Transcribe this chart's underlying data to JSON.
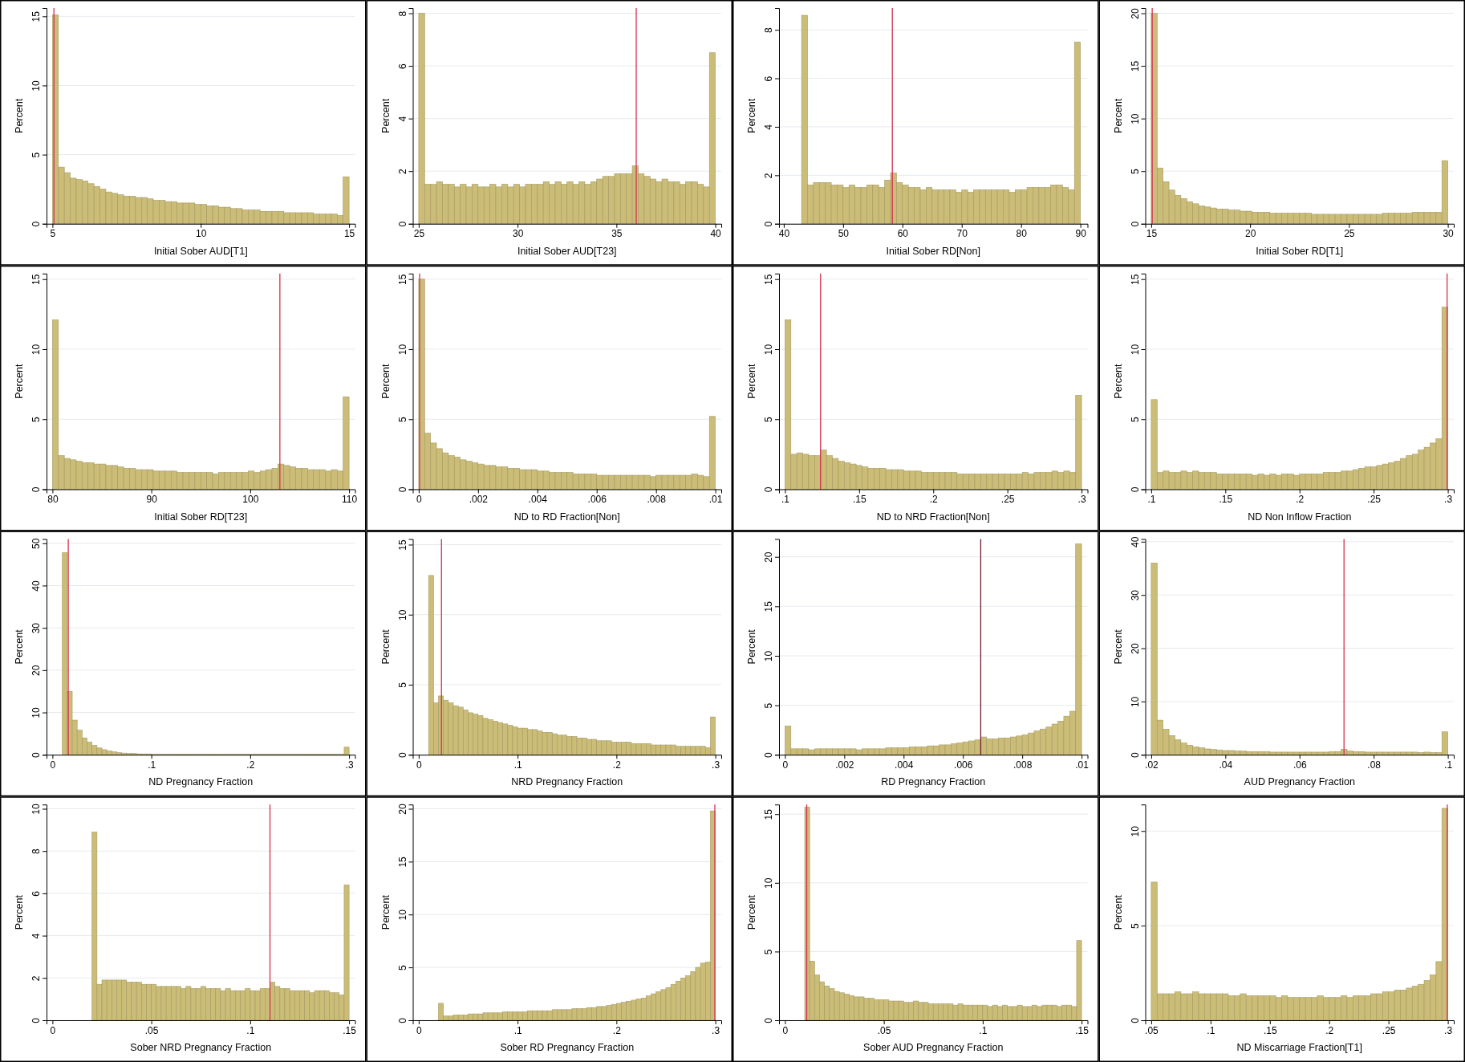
{
  "chart_data": [
    {
      "type": "histogram",
      "xlabel": "Initial Sober AUD[T1]",
      "ylabel": "Percent",
      "color": "#cbbd78",
      "grid": "y",
      "xlim": [
        4.8,
        15.2
      ],
      "ylim": [
        0,
        15.6
      ],
      "xticks": [
        5,
        10,
        15
      ],
      "yticks": [
        0,
        5,
        10,
        15
      ],
      "ref_lines": [
        {
          "axis": "x",
          "value": 5.05,
          "color": "#d6304f"
        }
      ],
      "bins": [
        5,
        5.2,
        5.4,
        5.6,
        5.8,
        6,
        6.2,
        6.4,
        6.6,
        6.8,
        7,
        7.2,
        7.4,
        7.6,
        7.8,
        8,
        8.2,
        8.4,
        8.6,
        8.8,
        9,
        9.2,
        9.4,
        9.6,
        9.8,
        10,
        10.2,
        10.4,
        10.6,
        10.8,
        11,
        11.2,
        11.4,
        11.6,
        11.8,
        12,
        12.2,
        12.4,
        12.6,
        12.8,
        13,
        13.2,
        13.4,
        13.6,
        13.8,
        14,
        14.2,
        14.4,
        14.6,
        14.8,
        15
      ],
      "values": [
        15.1,
        4.1,
        3.7,
        3.3,
        3.2,
        3.1,
        2.9,
        2.7,
        2.5,
        2.3,
        2.2,
        2.1,
        2.0,
        2.0,
        1.9,
        1.9,
        1.8,
        1.7,
        1.7,
        1.6,
        1.6,
        1.5,
        1.5,
        1.5,
        1.4,
        1.4,
        1.3,
        1.3,
        1.2,
        1.2,
        1.1,
        1.1,
        1.0,
        1.0,
        1.0,
        0.9,
        0.9,
        0.9,
        0.9,
        0.8,
        0.8,
        0.8,
        0.8,
        0.8,
        0.7,
        0.7,
        0.7,
        0.7,
        0.6,
        3.4
      ]
    },
    {
      "type": "histogram",
      "xlabel": "Initial Sober AUD[T23]",
      "ylabel": "Percent",
      "color": "#cbbd78",
      "grid": "y",
      "xlim": [
        24.7,
        40.3
      ],
      "ylim": [
        0,
        8.2
      ],
      "xticks": [
        25,
        30,
        35,
        40
      ],
      "yticks": [
        0,
        2,
        4,
        6,
        8
      ],
      "ref_lines": [
        {
          "axis": "x",
          "value": 36,
          "color": "#d6304f"
        }
      ],
      "bins": [
        25,
        25.3,
        25.6,
        25.9,
        26.2,
        26.5,
        26.8,
        27.1,
        27.4,
        27.7,
        28,
        28.3,
        28.6,
        28.9,
        29.2,
        29.5,
        29.8,
        30.1,
        30.4,
        30.7,
        31,
        31.3,
        31.6,
        31.9,
        32.2,
        32.5,
        32.8,
        33.1,
        33.4,
        33.7,
        34,
        34.3,
        34.6,
        34.9,
        35.2,
        35.5,
        35.8,
        36.1,
        36.4,
        36.7,
        37,
        37.3,
        37.6,
        37.9,
        38.2,
        38.5,
        38.8,
        39.1,
        39.4,
        39.7,
        40
      ],
      "values": [
        8.0,
        1.5,
        1.5,
        1.6,
        1.5,
        1.5,
        1.4,
        1.5,
        1.4,
        1.5,
        1.4,
        1.4,
        1.5,
        1.4,
        1.5,
        1.4,
        1.5,
        1.4,
        1.5,
        1.5,
        1.5,
        1.6,
        1.5,
        1.6,
        1.5,
        1.6,
        1.5,
        1.6,
        1.5,
        1.6,
        1.7,
        1.8,
        1.8,
        1.9,
        1.9,
        1.9,
        2.2,
        1.9,
        1.8,
        1.7,
        1.6,
        1.7,
        1.6,
        1.6,
        1.5,
        1.6,
        1.6,
        1.5,
        1.4,
        6.5
      ]
    },
    {
      "type": "histogram",
      "xlabel": "Initial Sober RD[Non]",
      "ylabel": "Percent",
      "color": "#cbbd78",
      "grid": "y",
      "xlim": [
        39.2,
        91.2
      ],
      "ylim": [
        0,
        8.9
      ],
      "xticks": [
        40,
        50,
        60,
        70,
        80,
        90
      ],
      "yticks": [
        0,
        2,
        4,
        6,
        8
      ],
      "ref_lines": [
        {
          "axis": "x",
          "value": 58.3,
          "color": "#d6304f"
        }
      ],
      "bins": [
        43,
        44,
        45,
        46,
        47,
        48,
        49,
        50,
        51,
        52,
        53,
        54,
        55,
        56,
        57,
        58,
        59,
        60,
        61,
        62,
        63,
        64,
        65,
        66,
        67,
        68,
        69,
        70,
        71,
        72,
        73,
        74,
        75,
        76,
        77,
        78,
        79,
        80,
        81,
        82,
        83,
        84,
        85,
        86,
        87,
        88,
        89,
        90
      ],
      "values": [
        8.6,
        1.6,
        1.7,
        1.7,
        1.7,
        1.6,
        1.6,
        1.5,
        1.6,
        1.5,
        1.5,
        1.6,
        1.6,
        1.5,
        1.8,
        2.1,
        1.7,
        1.6,
        1.5,
        1.5,
        1.4,
        1.5,
        1.4,
        1.4,
        1.4,
        1.4,
        1.3,
        1.4,
        1.3,
        1.4,
        1.4,
        1.4,
        1.4,
        1.4,
        1.4,
        1.3,
        1.4,
        1.4,
        1.5,
        1.5,
        1.5,
        1.5,
        1.6,
        1.6,
        1.5,
        1.4,
        7.5
      ]
    },
    {
      "type": "histogram",
      "xlabel": "Initial Sober RD[T1]",
      "ylabel": "Percent",
      "color": "#cbbd78",
      "grid": "y",
      "xlim": [
        14.7,
        30.3
      ],
      "ylim": [
        0,
        20.5
      ],
      "xticks": [
        15,
        20,
        25,
        30
      ],
      "yticks": [
        0,
        5,
        10,
        15,
        20
      ],
      "ref_lines": [
        {
          "axis": "x",
          "value": 15.05,
          "color": "#d6304f"
        }
      ],
      "bins": [
        15,
        15.3,
        15.6,
        15.9,
        16.2,
        16.5,
        16.8,
        17.1,
        17.4,
        17.7,
        18,
        18.3,
        18.6,
        18.9,
        19.2,
        19.5,
        19.8,
        20.1,
        20.4,
        20.7,
        21,
        21.3,
        21.6,
        21.9,
        22.2,
        22.5,
        22.8,
        23.1,
        23.4,
        23.7,
        24,
        24.3,
        24.6,
        24.9,
        25.2,
        25.5,
        25.8,
        26.1,
        26.4,
        26.7,
        27,
        27.3,
        27.6,
        27.9,
        28.2,
        28.5,
        28.8,
        29.1,
        29.4,
        29.7,
        30
      ],
      "values": [
        20.0,
        5.3,
        4.0,
        3.2,
        2.7,
        2.4,
        2.1,
        1.9,
        1.7,
        1.6,
        1.5,
        1.4,
        1.4,
        1.3,
        1.3,
        1.2,
        1.2,
        1.1,
        1.1,
        1.1,
        1.0,
        1.0,
        1.0,
        1.0,
        1.0,
        1.0,
        1.0,
        0.9,
        0.9,
        0.9,
        0.9,
        0.9,
        0.9,
        0.9,
        0.9,
        0.9,
        0.9,
        0.9,
        0.9,
        1.0,
        1.0,
        1.0,
        1.0,
        1.0,
        1.1,
        1.1,
        1.1,
        1.1,
        1.1,
        6.0
      ]
    },
    {
      "type": "histogram",
      "xlabel": "Initial Sober RD[T23]",
      "ylabel": "Percent",
      "color": "#cbbd78",
      "grid": "y",
      "xlim": [
        79.4,
        110.6
      ],
      "ylim": [
        0,
        15.4
      ],
      "xticks": [
        80,
        90,
        100,
        110
      ],
      "yticks": [
        0,
        5,
        10,
        15
      ],
      "ref_lines": [
        {
          "axis": "x",
          "value": 103,
          "color": "#d6304f"
        }
      ],
      "bins": [
        80,
        80.6,
        81.2,
        81.8,
        82.4,
        83,
        83.6,
        84.2,
        84.8,
        85.4,
        86,
        86.6,
        87.2,
        87.8,
        88.4,
        89,
        89.6,
        90.2,
        90.8,
        91.4,
        92,
        92.6,
        93.2,
        93.8,
        94.4,
        95,
        95.6,
        96.2,
        96.8,
        97.4,
        98,
        98.6,
        99.2,
        99.8,
        100.4,
        101,
        101.6,
        102.2,
        102.8,
        103.4,
        104,
        104.6,
        105.2,
        105.8,
        106.4,
        107,
        107.6,
        108.2,
        108.8,
        109.4,
        110
      ],
      "values": [
        12.1,
        2.4,
        2.2,
        2.1,
        2.0,
        1.9,
        1.9,
        1.8,
        1.8,
        1.7,
        1.7,
        1.6,
        1.5,
        1.5,
        1.4,
        1.4,
        1.4,
        1.3,
        1.3,
        1.3,
        1.3,
        1.2,
        1.2,
        1.2,
        1.2,
        1.2,
        1.2,
        1.1,
        1.2,
        1.2,
        1.2,
        1.2,
        1.2,
        1.3,
        1.2,
        1.3,
        1.4,
        1.5,
        1.8,
        1.7,
        1.6,
        1.5,
        1.5,
        1.4,
        1.4,
        1.4,
        1.3,
        1.4,
        1.3,
        6.6
      ]
    },
    {
      "type": "histogram",
      "xlabel": "ND to RD Fraction[Non]",
      "ylabel": "Percent",
      "color": "#cbbd78",
      "grid": "y",
      "xlim": [
        -0.0002,
        0.0102
      ],
      "ylim": [
        0,
        15.4
      ],
      "xticks": [
        0,
        {
          "value": 0.002,
          "label": ".002"
        },
        {
          "value": 0.004,
          "label": ".004"
        },
        {
          "value": 0.006,
          "label": ".006"
        },
        {
          "value": 0.008,
          "label": ".008"
        },
        {
          "value": 0.01,
          "label": ".01"
        }
      ],
      "yticks": [
        0,
        5,
        10,
        15
      ],
      "ref_lines": [
        {
          "axis": "x",
          "value": 3e-05,
          "color": "#d6304f"
        }
      ],
      "bins": [
        0,
        0.0002,
        0.0004,
        0.0006,
        0.0008,
        0.001,
        0.0012,
        0.0014,
        0.0016,
        0.0018,
        0.002,
        0.0022,
        0.0024,
        0.0026,
        0.0028,
        0.003,
        0.0032,
        0.0034,
        0.0036,
        0.0038,
        0.004,
        0.0042,
        0.0044,
        0.0046,
        0.0048,
        0.005,
        0.0052,
        0.0054,
        0.0056,
        0.0058,
        0.006,
        0.0062,
        0.0064,
        0.0066,
        0.0068,
        0.007,
        0.0072,
        0.0074,
        0.0076,
        0.0078,
        0.008,
        0.0082,
        0.0084,
        0.0086,
        0.0088,
        0.009,
        0.0092,
        0.0094,
        0.0096,
        0.0098,
        0.01
      ],
      "values": [
        15.0,
        4.0,
        3.3,
        2.9,
        2.6,
        2.4,
        2.3,
        2.1,
        2.0,
        1.9,
        1.8,
        1.7,
        1.7,
        1.6,
        1.6,
        1.5,
        1.5,
        1.4,
        1.4,
        1.4,
        1.3,
        1.3,
        1.2,
        1.2,
        1.2,
        1.2,
        1.1,
        1.1,
        1.1,
        1.1,
        1.0,
        1.0,
        1.0,
        1.0,
        1.0,
        1.0,
        1.0,
        1.0,
        1.0,
        0.9,
        1.0,
        1.0,
        1.0,
        1.0,
        1.0,
        1.0,
        1.1,
        1.0,
        0.9,
        5.2
      ]
    },
    {
      "type": "histogram",
      "xlabel": "ND to NRD Fraction[Non]",
      "ylabel": "Percent",
      "color": "#cbbd78",
      "grid": "y",
      "xlim": [
        0.096,
        0.304
      ],
      "ylim": [
        0,
        15.4
      ],
      "xticks": [
        {
          "value": 0.1,
          "label": ".1"
        },
        {
          "value": 0.15,
          "label": ".15"
        },
        {
          "value": 0.2,
          "label": ".2"
        },
        {
          "value": 0.25,
          "label": ".25"
        },
        {
          "value": 0.3,
          "label": ".3"
        }
      ],
      "yticks": [
        0,
        5,
        10,
        15
      ],
      "ref_lines": [
        {
          "axis": "x",
          "value": 0.124,
          "color": "#d6304f"
        }
      ],
      "bins": [
        0.1,
        0.104,
        0.108,
        0.112,
        0.116,
        0.12,
        0.124,
        0.128,
        0.132,
        0.136,
        0.14,
        0.144,
        0.148,
        0.152,
        0.156,
        0.16,
        0.164,
        0.168,
        0.172,
        0.176,
        0.18,
        0.184,
        0.188,
        0.192,
        0.196,
        0.2,
        0.204,
        0.208,
        0.212,
        0.216,
        0.22,
        0.224,
        0.228,
        0.232,
        0.236,
        0.24,
        0.244,
        0.248,
        0.252,
        0.256,
        0.26,
        0.264,
        0.268,
        0.272,
        0.276,
        0.28,
        0.284,
        0.288,
        0.292,
        0.296,
        0.3
      ],
      "values": [
        12.1,
        2.5,
        2.6,
        2.5,
        2.4,
        2.4,
        2.8,
        2.4,
        2.2,
        2.0,
        1.9,
        1.8,
        1.7,
        1.6,
        1.5,
        1.5,
        1.5,
        1.4,
        1.4,
        1.4,
        1.3,
        1.3,
        1.3,
        1.2,
        1.2,
        1.2,
        1.2,
        1.2,
        1.2,
        1.1,
        1.1,
        1.1,
        1.1,
        1.1,
        1.1,
        1.1,
        1.1,
        1.1,
        1.1,
        1.1,
        1.2,
        1.1,
        1.2,
        1.2,
        1.2,
        1.3,
        1.2,
        1.3,
        1.2,
        6.7
      ]
    },
    {
      "type": "histogram",
      "xlabel": "ND Non Inflow Fraction",
      "ylabel": "Percent",
      "color": "#cbbd78",
      "grid": "y",
      "xlim": [
        0.096,
        0.304
      ],
      "ylim": [
        0,
        15.4
      ],
      "xticks": [
        {
          "value": 0.1,
          "label": ".1"
        },
        {
          "value": 0.15,
          "label": ".15"
        },
        {
          "value": 0.2,
          "label": ".2"
        },
        {
          "value": 0.25,
          "label": ".25"
        },
        {
          "value": 0.3,
          "label": ".3"
        }
      ],
      "yticks": [
        0,
        5,
        10,
        15
      ],
      "ref_lines": [
        {
          "axis": "x",
          "value": 0.2995,
          "color": "#d6304f"
        }
      ],
      "bins": [
        0.1,
        0.104,
        0.108,
        0.112,
        0.116,
        0.12,
        0.124,
        0.128,
        0.132,
        0.136,
        0.14,
        0.144,
        0.148,
        0.152,
        0.156,
        0.16,
        0.164,
        0.168,
        0.172,
        0.176,
        0.18,
        0.184,
        0.188,
        0.192,
        0.196,
        0.2,
        0.204,
        0.208,
        0.212,
        0.216,
        0.22,
        0.224,
        0.228,
        0.232,
        0.236,
        0.24,
        0.244,
        0.248,
        0.252,
        0.256,
        0.26,
        0.264,
        0.268,
        0.272,
        0.276,
        0.28,
        0.284,
        0.288,
        0.292,
        0.296,
        0.3
      ],
      "values": [
        6.4,
        1.2,
        1.3,
        1.2,
        1.2,
        1.3,
        1.2,
        1.3,
        1.2,
        1.2,
        1.2,
        1.1,
        1.1,
        1.1,
        1.1,
        1.1,
        1.1,
        1.0,
        1.1,
        1.0,
        1.1,
        1.0,
        1.1,
        1.1,
        1.0,
        1.1,
        1.1,
        1.1,
        1.1,
        1.2,
        1.2,
        1.2,
        1.3,
        1.3,
        1.4,
        1.5,
        1.6,
        1.6,
        1.7,
        1.8,
        1.9,
        2.0,
        2.2,
        2.4,
        2.5,
        2.8,
        3.0,
        3.3,
        3.6,
        13.0
      ]
    },
    {
      "type": "histogram",
      "xlabel": "ND Pregnancy Fraction",
      "ylabel": "Percent",
      "color": "#cbbd78",
      "grid": "y",
      "xlim": [
        -0.006,
        0.306
      ],
      "ylim": [
        0,
        51
      ],
      "xticks": [
        0,
        {
          "value": 0.1,
          "label": ".1"
        },
        {
          "value": 0.2,
          "label": ".2"
        },
        {
          "value": 0.3,
          "label": ".3"
        }
      ],
      "yticks": [
        0,
        10,
        20,
        30,
        40,
        50
      ],
      "ref_lines": [
        {
          "axis": "x",
          "value": 0.016,
          "color": "#d6304f"
        }
      ],
      "bins": [
        0.01,
        0.015,
        0.02,
        0.025,
        0.03,
        0.035,
        0.04,
        0.045,
        0.05,
        0.055,
        0.06,
        0.065,
        0.07,
        0.075,
        0.08,
        0.085,
        0.09,
        0.095,
        0.1,
        0.105,
        0.11,
        0.115,
        0.12,
        0.125,
        0.13,
        0.135,
        0.14,
        0.145,
        0.15,
        0.155,
        0.16,
        0.165,
        0.17,
        0.175,
        0.18,
        0.185,
        0.19,
        0.195,
        0.2,
        0.205,
        0.21,
        0.215,
        0.22,
        0.225,
        0.23,
        0.235,
        0.24,
        0.245,
        0.25,
        0.255,
        0.26,
        0.265,
        0.27,
        0.275,
        0.28,
        0.285,
        0.29,
        0.295,
        0.3
      ],
      "values": [
        47.8,
        15.0,
        8.2,
        5.8,
        4.0,
        3.0,
        2.2,
        1.6,
        1.2,
        0.9,
        0.7,
        0.5,
        0.4,
        0.3,
        0.3,
        0.2,
        0.2,
        0.2,
        0.1,
        0.1,
        0.1,
        0.1,
        0.1,
        0.1,
        0.1,
        0.1,
        0.1,
        0.1,
        0.1,
        0.1,
        0.1,
        0.1,
        0.1,
        0.1,
        0.1,
        0.1,
        0.1,
        0.1,
        0.1,
        0.1,
        0.1,
        0.1,
        0.1,
        0.1,
        0.1,
        0.1,
        0.1,
        0.1,
        0.1,
        0.1,
        0.1,
        0.1,
        0.1,
        0.1,
        0.1,
        0.1,
        0.1,
        1.8
      ]
    },
    {
      "type": "histogram",
      "xlabel": "NRD Pregnancy Fraction",
      "ylabel": "Percent",
      "color": "#cbbd78",
      "grid": "y",
      "xlim": [
        -0.006,
        0.306
      ],
      "ylim": [
        0,
        15.4
      ],
      "xticks": [
        0,
        {
          "value": 0.1,
          "label": ".1"
        },
        {
          "value": 0.2,
          "label": ".2"
        },
        {
          "value": 0.3,
          "label": ".3"
        }
      ],
      "yticks": [
        0,
        5,
        10,
        15
      ],
      "ref_lines": [
        {
          "axis": "x",
          "value": 0.023,
          "color": "#d6304f"
        }
      ],
      "bins": [
        0.01,
        0.015,
        0.02,
        0.025,
        0.03,
        0.035,
        0.04,
        0.045,
        0.05,
        0.055,
        0.06,
        0.065,
        0.07,
        0.075,
        0.08,
        0.085,
        0.09,
        0.095,
        0.1,
        0.105,
        0.11,
        0.115,
        0.12,
        0.125,
        0.13,
        0.135,
        0.14,
        0.145,
        0.15,
        0.155,
        0.16,
        0.165,
        0.17,
        0.175,
        0.18,
        0.185,
        0.19,
        0.195,
        0.2,
        0.205,
        0.21,
        0.215,
        0.22,
        0.225,
        0.23,
        0.235,
        0.24,
        0.245,
        0.25,
        0.255,
        0.26,
        0.265,
        0.27,
        0.275,
        0.28,
        0.285,
        0.29,
        0.295,
        0.3
      ],
      "values": [
        12.8,
        3.7,
        4.2,
        3.9,
        3.7,
        3.5,
        3.4,
        3.2,
        3.0,
        2.9,
        2.8,
        2.6,
        2.5,
        2.4,
        2.3,
        2.2,
        2.1,
        2.0,
        1.9,
        1.9,
        1.8,
        1.8,
        1.7,
        1.6,
        1.6,
        1.5,
        1.4,
        1.4,
        1.3,
        1.3,
        1.2,
        1.2,
        1.1,
        1.1,
        1.0,
        1.0,
        1.0,
        0.9,
        0.9,
        0.9,
        0.9,
        0.8,
        0.8,
        0.8,
        0.8,
        0.7,
        0.7,
        0.7,
        0.7,
        0.7,
        0.6,
        0.6,
        0.6,
        0.6,
        0.6,
        0.6,
        0.5,
        2.7
      ]
    },
    {
      "type": "histogram",
      "xlabel": "RD Pregnancy Fraction",
      "ylabel": "Percent",
      "color": "#cbbd78",
      "grid": "y",
      "xlim": [
        -0.0002,
        0.0102
      ],
      "ylim": [
        0,
        21.8
      ],
      "xticks": [
        0,
        {
          "value": 0.002,
          "label": ".002"
        },
        {
          "value": 0.004,
          "label": ".004"
        },
        {
          "value": 0.006,
          "label": ".006"
        },
        {
          "value": 0.008,
          "label": ".008"
        },
        {
          "value": 0.01,
          "label": ".01"
        }
      ],
      "yticks": [
        0,
        5,
        10,
        15,
        20
      ],
      "ref_lines": [
        {
          "axis": "x",
          "value": 0.0066,
          "color": "#6e2030"
        }
      ],
      "bins": [
        0,
        0.0002,
        0.0004,
        0.0006,
        0.0008,
        0.001,
        0.0012,
        0.0014,
        0.0016,
        0.0018,
        0.002,
        0.0022,
        0.0024,
        0.0026,
        0.0028,
        0.003,
        0.0032,
        0.0034,
        0.0036,
        0.0038,
        0.004,
        0.0042,
        0.0044,
        0.0046,
        0.0048,
        0.005,
        0.0052,
        0.0054,
        0.0056,
        0.0058,
        0.006,
        0.0062,
        0.0064,
        0.0066,
        0.0068,
        0.007,
        0.0072,
        0.0074,
        0.0076,
        0.0078,
        0.008,
        0.0082,
        0.0084,
        0.0086,
        0.0088,
        0.009,
        0.0092,
        0.0094,
        0.0096,
        0.0098,
        0.01
      ],
      "values": [
        2.9,
        0.6,
        0.6,
        0.6,
        0.5,
        0.6,
        0.6,
        0.6,
        0.6,
        0.6,
        0.6,
        0.6,
        0.5,
        0.6,
        0.6,
        0.6,
        0.6,
        0.7,
        0.7,
        0.7,
        0.7,
        0.8,
        0.8,
        0.8,
        0.9,
        0.9,
        1.0,
        1.0,
        1.1,
        1.2,
        1.3,
        1.4,
        1.5,
        1.8,
        1.6,
        1.6,
        1.7,
        1.7,
        1.8,
        1.9,
        2.0,
        2.2,
        2.4,
        2.6,
        2.8,
        3.1,
        3.4,
        3.9,
        4.4,
        21.3
      ]
    },
    {
      "type": "histogram",
      "xlabel": "AUD Pregnancy Fraction",
      "ylabel": "Percent",
      "color": "#cbbd78",
      "grid": "y",
      "xlim": [
        0.0184,
        0.1016
      ],
      "ylim": [
        0,
        40.5
      ],
      "xticks": [
        {
          "value": 0.02,
          "label": ".02"
        },
        {
          "value": 0.04,
          "label": ".04"
        },
        {
          "value": 0.06,
          "label": ".06"
        },
        {
          "value": 0.08,
          "label": ".08"
        },
        {
          "value": 0.1,
          "label": ".1"
        }
      ],
      "yticks": [
        0,
        10,
        20,
        30,
        40
      ],
      "ref_lines": [
        {
          "axis": "x",
          "value": 0.072,
          "color": "#d6304f"
        }
      ],
      "bins": [
        0.02,
        0.0216,
        0.0232,
        0.0248,
        0.0264,
        0.028,
        0.0296,
        0.0312,
        0.0328,
        0.0344,
        0.036,
        0.0376,
        0.0392,
        0.0408,
        0.0424,
        0.044,
        0.0456,
        0.0472,
        0.0488,
        0.0504,
        0.052,
        0.0536,
        0.0552,
        0.0568,
        0.0584,
        0.06,
        0.0616,
        0.0632,
        0.0648,
        0.0664,
        0.068,
        0.0696,
        0.0712,
        0.0728,
        0.0744,
        0.076,
        0.0776,
        0.0792,
        0.0808,
        0.0824,
        0.084,
        0.0856,
        0.0872,
        0.0888,
        0.0904,
        0.092,
        0.0936,
        0.0952,
        0.0968,
        0.0984,
        0.1
      ],
      "values": [
        36.0,
        6.5,
        4.8,
        3.6,
        2.8,
        2.2,
        1.8,
        1.5,
        1.3,
        1.1,
        1.0,
        0.9,
        0.8,
        0.8,
        0.7,
        0.7,
        0.6,
        0.6,
        0.6,
        0.6,
        0.5,
        0.5,
        0.5,
        0.5,
        0.5,
        0.5,
        0.5,
        0.5,
        0.5,
        0.5,
        0.6,
        0.6,
        1.0,
        0.7,
        0.6,
        0.6,
        0.5,
        0.5,
        0.5,
        0.5,
        0.5,
        0.5,
        0.5,
        0.5,
        0.5,
        0.4,
        0.5,
        0.4,
        0.4,
        4.3
      ]
    },
    {
      "type": "histogram",
      "xlabel": "Sober NRD Pregnancy Fraction",
      "ylabel": "Percent",
      "color": "#cbbd78",
      "grid": "y",
      "xlim": [
        -0.003,
        0.153
      ],
      "ylim": [
        0,
        10.2
      ],
      "xticks": [
        0,
        {
          "value": 0.05,
          "label": ".05"
        },
        {
          "value": 0.1,
          "label": ".1"
        },
        {
          "value": 0.15,
          "label": ".15"
        }
      ],
      "yticks": [
        0,
        2,
        4,
        6,
        8,
        10
      ],
      "ref_lines": [
        {
          "axis": "x",
          "value": 0.11,
          "color": "#d6304f"
        }
      ],
      "bins": [
        0.02,
        0.0225,
        0.025,
        0.0275,
        0.03,
        0.0325,
        0.035,
        0.0375,
        0.04,
        0.0425,
        0.045,
        0.0475,
        0.05,
        0.0525,
        0.055,
        0.0575,
        0.06,
        0.0625,
        0.065,
        0.0675,
        0.07,
        0.0725,
        0.075,
        0.0775,
        0.08,
        0.0825,
        0.085,
        0.0875,
        0.09,
        0.0925,
        0.095,
        0.0975,
        0.1,
        0.1025,
        0.105,
        0.1075,
        0.11,
        0.1125,
        0.115,
        0.1175,
        0.12,
        0.1225,
        0.125,
        0.1275,
        0.13,
        0.1325,
        0.135,
        0.1375,
        0.14,
        0.1425,
        0.145,
        0.1475,
        0.15
      ],
      "values": [
        8.9,
        1.7,
        1.9,
        1.9,
        1.9,
        1.9,
        1.9,
        1.8,
        1.8,
        1.8,
        1.7,
        1.7,
        1.7,
        1.6,
        1.6,
        1.6,
        1.6,
        1.6,
        1.5,
        1.6,
        1.5,
        1.5,
        1.6,
        1.5,
        1.5,
        1.5,
        1.4,
        1.5,
        1.4,
        1.4,
        1.4,
        1.5,
        1.4,
        1.4,
        1.5,
        1.5,
        1.8,
        1.6,
        1.5,
        1.5,
        1.4,
        1.4,
        1.4,
        1.4,
        1.3,
        1.4,
        1.4,
        1.4,
        1.3,
        1.3,
        1.2,
        6.4
      ]
    },
    {
      "type": "histogram",
      "xlabel": "Sober RD Pregnancy Fraction",
      "ylabel": "Percent",
      "color": "#cbbd78",
      "grid": "y",
      "xlim": [
        -0.006,
        0.306
      ],
      "ylim": [
        0,
        20.4
      ],
      "xticks": [
        0,
        {
          "value": 0.1,
          "label": ".1"
        },
        {
          "value": 0.2,
          "label": ".2"
        },
        {
          "value": 0.3,
          "label": ".3"
        }
      ],
      "yticks": [
        0,
        5,
        10,
        15,
        20
      ],
      "ref_lines": [
        {
          "axis": "x",
          "value": 0.2995,
          "color": "#d6304f"
        }
      ],
      "bins": [
        0.02,
        0.025,
        0.03,
        0.035,
        0.04,
        0.045,
        0.05,
        0.055,
        0.06,
        0.065,
        0.07,
        0.075,
        0.08,
        0.085,
        0.09,
        0.095,
        0.1,
        0.105,
        0.11,
        0.115,
        0.12,
        0.125,
        0.13,
        0.135,
        0.14,
        0.145,
        0.15,
        0.155,
        0.16,
        0.165,
        0.17,
        0.175,
        0.18,
        0.185,
        0.19,
        0.195,
        0.2,
        0.205,
        0.21,
        0.215,
        0.22,
        0.225,
        0.23,
        0.235,
        0.24,
        0.245,
        0.25,
        0.255,
        0.26,
        0.265,
        0.27,
        0.275,
        0.28,
        0.285,
        0.29,
        0.295,
        0.3
      ],
      "values": [
        1.6,
        0.4,
        0.4,
        0.5,
        0.5,
        0.5,
        0.6,
        0.6,
        0.6,
        0.7,
        0.7,
        0.7,
        0.7,
        0.8,
        0.8,
        0.8,
        0.8,
        0.8,
        0.9,
        0.9,
        0.9,
        0.9,
        0.9,
        1.0,
        1.0,
        1.0,
        1.0,
        1.1,
        1.1,
        1.1,
        1.2,
        1.2,
        1.3,
        1.3,
        1.4,
        1.5,
        1.6,
        1.7,
        1.8,
        1.9,
        2.0,
        2.1,
        2.3,
        2.5,
        2.7,
        2.9,
        3.1,
        3.4,
        3.7,
        4.0,
        4.2,
        4.6,
        5.0,
        5.4,
        5.5,
        19.8
      ]
    },
    {
      "type": "histogram",
      "xlabel": "Sober AUD Pregnancy Fraction",
      "ylabel": "Percent",
      "color": "#cbbd78",
      "grid": "y",
      "xlim": [
        -0.003,
        0.153
      ],
      "ylim": [
        0,
        15.7
      ],
      "xticks": [
        0,
        {
          "value": 0.05,
          "label": ".05"
        },
        {
          "value": 0.1,
          "label": ".1"
        },
        {
          "value": 0.15,
          "label": ".15"
        }
      ],
      "yticks": [
        0,
        5,
        10,
        15
      ],
      "ref_lines": [
        {
          "axis": "x",
          "value": 0.011,
          "color": "#d6304f"
        }
      ],
      "bins": [
        0.01,
        0.0125,
        0.015,
        0.0175,
        0.02,
        0.0225,
        0.025,
        0.0275,
        0.03,
        0.0325,
        0.035,
        0.0375,
        0.04,
        0.0425,
        0.045,
        0.0475,
        0.05,
        0.0525,
        0.055,
        0.0575,
        0.06,
        0.0625,
        0.065,
        0.0675,
        0.07,
        0.0725,
        0.075,
        0.0775,
        0.08,
        0.0825,
        0.085,
        0.0875,
        0.09,
        0.0925,
        0.095,
        0.0975,
        0.1,
        0.1025,
        0.105,
        0.1075,
        0.11,
        0.1125,
        0.115,
        0.1175,
        0.12,
        0.1225,
        0.125,
        0.1275,
        0.13,
        0.1325,
        0.135,
        0.1375,
        0.14,
        0.1425,
        0.145,
        0.1475,
        0.15
      ],
      "values": [
        15.5,
        4.3,
        3.3,
        2.8,
        2.5,
        2.3,
        2.1,
        2.0,
        1.9,
        1.8,
        1.7,
        1.7,
        1.6,
        1.6,
        1.5,
        1.5,
        1.5,
        1.4,
        1.4,
        1.4,
        1.3,
        1.3,
        1.4,
        1.3,
        1.3,
        1.2,
        1.2,
        1.2,
        1.2,
        1.2,
        1.1,
        1.2,
        1.1,
        1.1,
        1.1,
        1.1,
        1.1,
        1.0,
        1.1,
        1.0,
        1.1,
        1.0,
        1.0,
        1.1,
        1.0,
        1.0,
        1.1,
        1.0,
        1.1,
        1.1,
        1.1,
        1.0,
        1.1,
        1.1,
        1.0,
        5.8
      ]
    },
    {
      "type": "histogram",
      "xlabel": "ND Miscarriage Fraction[T1]",
      "ylabel": "Percent",
      "color": "#cbbd78",
      "grid": "y",
      "xlim": [
        0.045,
        0.305
      ],
      "ylim": [
        0,
        11.4
      ],
      "xticks": [
        {
          "value": 0.05,
          "label": ".05"
        },
        {
          "value": 0.1,
          "label": ".1"
        },
        {
          "value": 0.15,
          "label": ".15"
        },
        {
          "value": 0.2,
          "label": ".2"
        },
        {
          "value": 0.25,
          "label": ".25"
        },
        {
          "value": 0.3,
          "label": ".3"
        }
      ],
      "yticks": [
        0,
        5,
        10
      ],
      "ref_lines": [
        {
          "axis": "x",
          "value": 0.2995,
          "color": "#d6304f"
        }
      ],
      "bins": [
        0.05,
        0.055,
        0.06,
        0.065,
        0.07,
        0.075,
        0.08,
        0.085,
        0.09,
        0.095,
        0.1,
        0.105,
        0.11,
        0.115,
        0.12,
        0.125,
        0.13,
        0.135,
        0.14,
        0.145,
        0.15,
        0.155,
        0.16,
        0.165,
        0.17,
        0.175,
        0.18,
        0.185,
        0.19,
        0.195,
        0.2,
        0.205,
        0.21,
        0.215,
        0.22,
        0.225,
        0.23,
        0.235,
        0.24,
        0.245,
        0.25,
        0.255,
        0.26,
        0.265,
        0.27,
        0.275,
        0.28,
        0.285,
        0.29,
        0.295,
        0.3
      ],
      "values": [
        7.3,
        1.4,
        1.4,
        1.4,
        1.5,
        1.4,
        1.4,
        1.5,
        1.4,
        1.4,
        1.4,
        1.4,
        1.4,
        1.3,
        1.3,
        1.4,
        1.3,
        1.3,
        1.3,
        1.3,
        1.3,
        1.2,
        1.3,
        1.2,
        1.2,
        1.2,
        1.2,
        1.2,
        1.3,
        1.2,
        1.2,
        1.2,
        1.3,
        1.2,
        1.3,
        1.3,
        1.3,
        1.4,
        1.4,
        1.5,
        1.5,
        1.6,
        1.6,
        1.7,
        1.8,
        1.9,
        2.1,
        2.4,
        3.1,
        11.2
      ]
    }
  ]
}
